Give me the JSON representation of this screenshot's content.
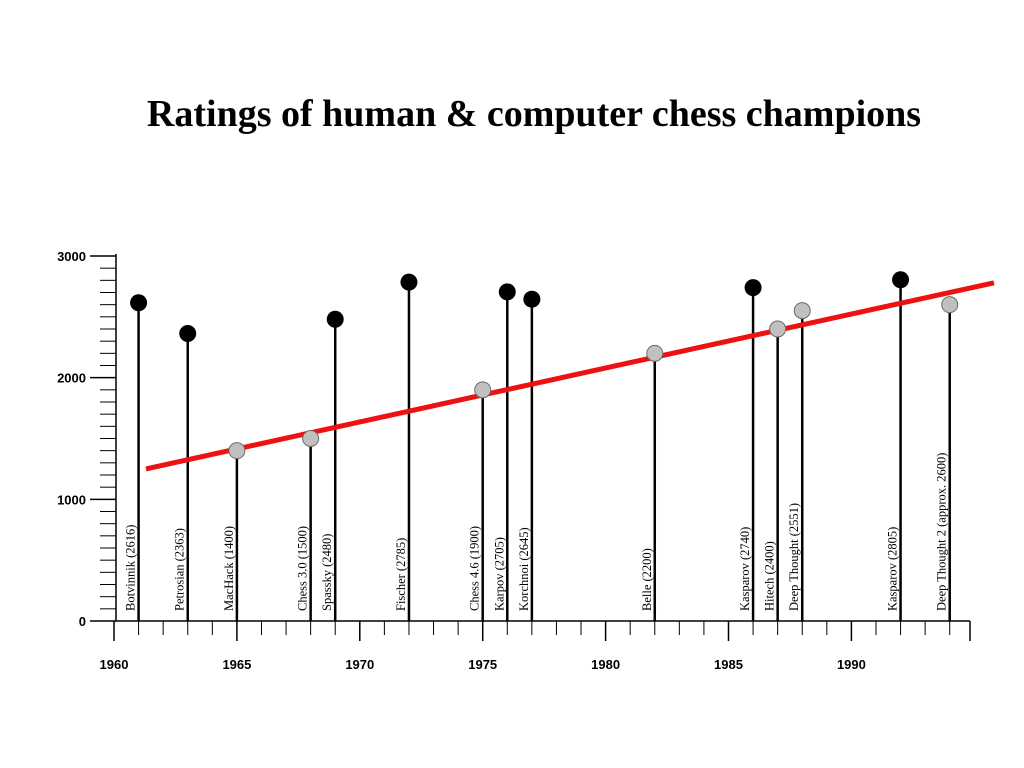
{
  "title": "Ratings of human & computer chess champions",
  "chart_data": {
    "type": "scatter",
    "title": "Ratings of human & computer chess champions",
    "xlabel": "",
    "ylabel": "",
    "xlim": [
      1958,
      1995
    ],
    "ylim": [
      0,
      3000
    ],
    "x_ticks": [
      1960,
      1965,
      1970,
      1975,
      1980,
      1985,
      1990
    ],
    "y_ticks": [
      0,
      1000,
      2000,
      3000
    ],
    "series": [
      {
        "name": "",
        "kind": "human",
        "color": "#000000",
        "points": [
          {
            "x": 1961,
            "y": 2616,
            "label": "Botvinnik (2616)"
          },
          {
            "x": 1963,
            "y": 2363,
            "label": "Petrosian (2363)"
          },
          {
            "x": 1969,
            "y": 2480,
            "label": "Spassky (2480)"
          },
          {
            "x": 1972,
            "y": 2785,
            "label": "Fischer (2785)"
          },
          {
            "x": 1976,
            "y": 2705,
            "label": "Karpov (2705)"
          },
          {
            "x": 1977,
            "y": 2645,
            "label": "Korchnoi (2645)"
          },
          {
            "x": 1986,
            "y": 2740,
            "label": "Kasparov (2740)"
          },
          {
            "x": 1992,
            "y": 2805,
            "label": "Kasparov (2805)"
          }
        ]
      },
      {
        "name": "",
        "kind": "computer",
        "color": "#c0c0c0",
        "points": [
          {
            "x": 1965,
            "y": 1400,
            "label": "MacHack (1400)"
          },
          {
            "x": 1968,
            "y": 1500,
            "label": "Chess 3.0 (1500)"
          },
          {
            "x": 1975,
            "y": 1900,
            "label": "Chess 4.6 (1900)"
          },
          {
            "x": 1982,
            "y": 2200,
            "label": "Belle (2200)"
          },
          {
            "x": 1987,
            "y": 2400,
            "label": "Hitech (2400)"
          },
          {
            "x": 1988,
            "y": 2551,
            "label": "Deep Thought (2551)"
          },
          {
            "x": 1994,
            "y": 2600,
            "label": "Deep Thought 2 (approx. 2600)"
          }
        ]
      }
    ],
    "trend_line": {
      "color": "#ee1111",
      "from": {
        "x": 1961.3,
        "y": 1250
      },
      "to": {
        "x": 1995.8,
        "y": 2780
      }
    }
  }
}
